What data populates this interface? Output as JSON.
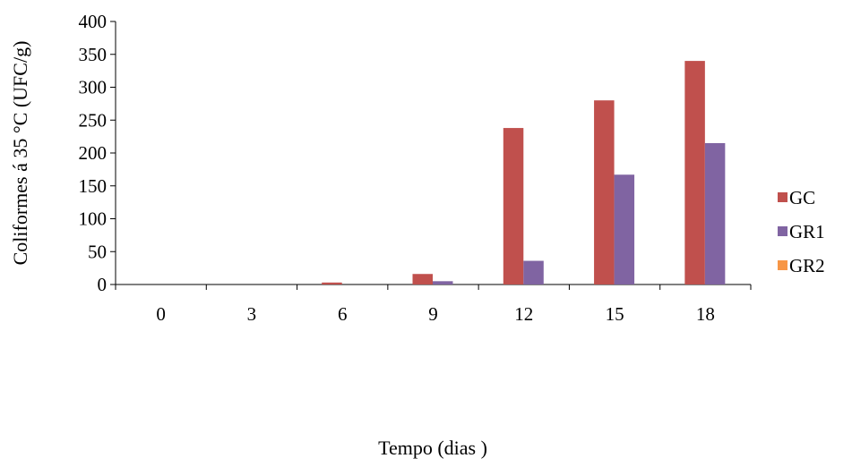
{
  "chart_data": {
    "type": "bar",
    "xlabel": "Tempo (dias )",
    "ylabel": "Coliformes á 35 °C (UFC/g)",
    "categories": [
      "0",
      "3",
      "6",
      "9",
      "12",
      "15",
      "18"
    ],
    "ylim": [
      0,
      400
    ],
    "yticks": [
      0,
      50,
      100,
      150,
      200,
      250,
      300,
      350,
      400
    ],
    "grid": false,
    "legend_position": "right",
    "series": [
      {
        "name": "GC",
        "color": "#c0504d",
        "values": [
          0,
          0,
          3,
          16,
          238,
          280,
          340
        ]
      },
      {
        "name": "GR1",
        "color": "#8064a2",
        "values": [
          0,
          0,
          0,
          5,
          36,
          167,
          215
        ]
      },
      {
        "name": "GR2",
        "color": "#f79646",
        "values": [
          0,
          0,
          0,
          0,
          0,
          0,
          0
        ]
      }
    ]
  }
}
